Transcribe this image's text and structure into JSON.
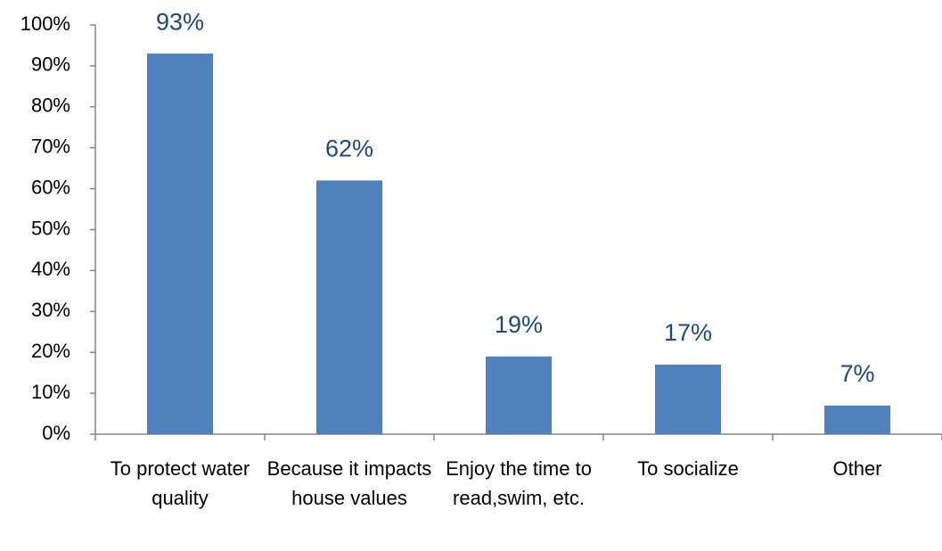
{
  "chart_data": {
    "type": "bar",
    "categories": [
      "To protect water quality",
      "Because it impacts house values",
      "Enjoy the time to read,swim, etc.",
      "To socialize",
      "Other"
    ],
    "values": [
      93,
      62,
      19,
      17,
      7
    ],
    "value_labels": [
      "93%",
      "62%",
      "19%",
      "17%",
      "7%"
    ],
    "color": "#4f81bd",
    "ylim": [
      0,
      100
    ],
    "yticks": [
      {
        "value": 0,
        "label": "0%"
      },
      {
        "value": 10,
        "label": "10%"
      },
      {
        "value": 20,
        "label": "20%"
      },
      {
        "value": 30,
        "label": "30%"
      },
      {
        "value": 40,
        "label": "40%"
      },
      {
        "value": 50,
        "label": "50%"
      },
      {
        "value": 60,
        "label": "60%"
      },
      {
        "value": 70,
        "label": "70%"
      },
      {
        "value": 80,
        "label": "80%"
      },
      {
        "value": 90,
        "label": "90%"
      },
      {
        "value": 100,
        "label": "100%"
      }
    ],
    "grid": false
  }
}
